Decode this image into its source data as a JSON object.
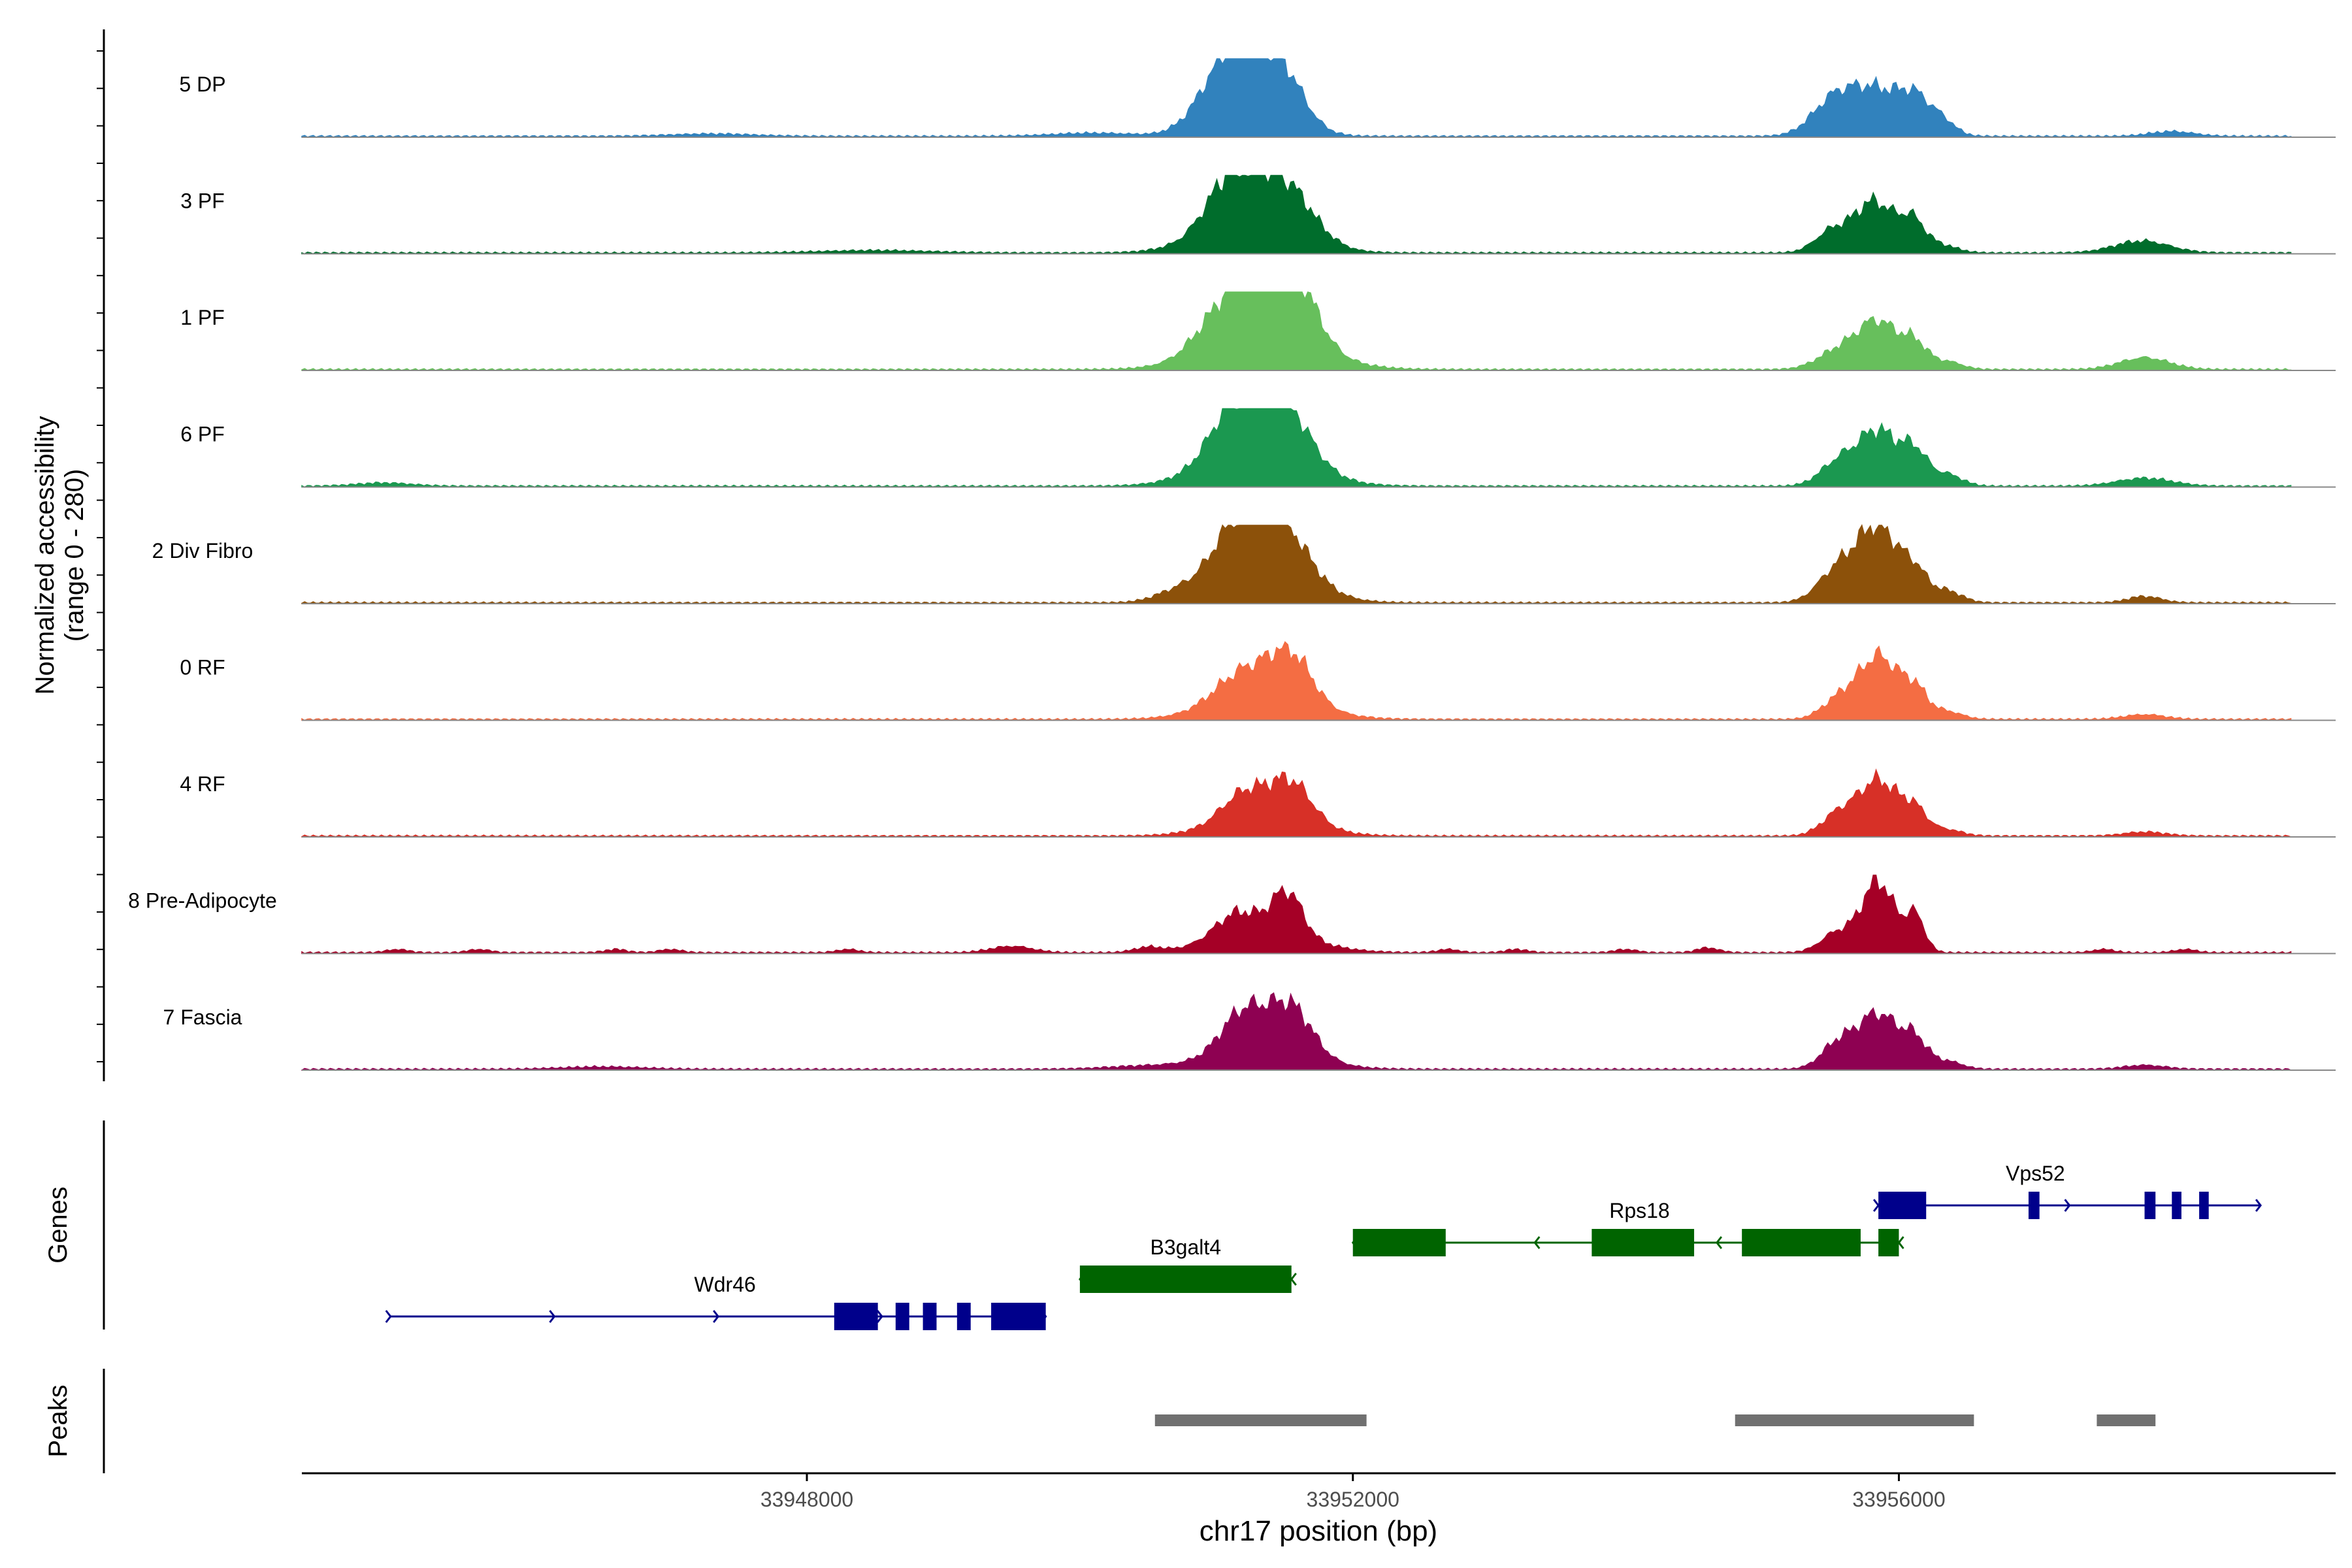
{
  "chart_data": {
    "type": "area",
    "title": "",
    "xlabel": "chr17 position (bp)",
    "ylabel_line1": "Normalized accessibility",
    "ylabel_line2": "(range 0 - 280)",
    "xlim": [
      33944300,
      33959200
    ],
    "ylim": [
      0,
      280
    ],
    "xticks": [
      33948000,
      33952000,
      33956000
    ],
    "xtick_labels": [
      "33948000",
      "33952000",
      "33956000"
    ],
    "tracks": [
      {
        "name": "5 DP",
        "color": "#3182BD",
        "peaks": [
          [
            33951100,
            70,
            200
          ],
          [
            33951480,
            55,
            160
          ],
          [
            33951250,
            48,
            260
          ],
          [
            33955500,
            30,
            150
          ],
          [
            33955820,
            60,
            230
          ],
          [
            33956130,
            32,
            110
          ],
          [
            33956330,
            15,
            90
          ],
          [
            33958000,
            6,
            160
          ],
          [
            33947300,
            3,
            300
          ],
          [
            33950100,
            4,
            300
          ]
        ]
      },
      {
        "name": "3 PF",
        "color": "#006D2C",
        "peaks": [
          [
            33951100,
            55,
            170
          ],
          [
            33951500,
            58,
            200
          ],
          [
            33951250,
            45,
            330
          ],
          [
            33955500,
            25,
            120
          ],
          [
            33955820,
            65,
            150
          ],
          [
            33956100,
            35,
            90
          ],
          [
            33956300,
            10,
            120
          ],
          [
            33957780,
            15,
            200
          ],
          [
            33948500,
            3,
            400
          ]
        ]
      },
      {
        "name": "1 PF",
        "color": "#67BF5C",
        "peaks": [
          [
            33951200,
            70,
            220
          ],
          [
            33951550,
            80,
            170
          ],
          [
            33951350,
            45,
            380
          ],
          [
            33955550,
            22,
            150
          ],
          [
            33955850,
            60,
            150
          ],
          [
            33956120,
            28,
            90
          ],
          [
            33956350,
            10,
            110
          ],
          [
            33957800,
            15,
            180
          ],
          [
            33950900,
            8,
            150
          ]
        ]
      },
      {
        "name": "6 PF",
        "color": "#1B9850",
        "peaks": [
          [
            33951150,
            65,
            180
          ],
          [
            33951500,
            62,
            180
          ],
          [
            33951300,
            48,
            350
          ],
          [
            33955550,
            28,
            130
          ],
          [
            33955850,
            70,
            150
          ],
          [
            33956120,
            38,
            90
          ],
          [
            33956350,
            15,
            110
          ],
          [
            33957800,
            10,
            200
          ],
          [
            33944900,
            4,
            200
          ]
        ]
      },
      {
        "name": "2 Div Fibro",
        "color": "#8C510A",
        "peaks": [
          [
            33951150,
            62,
            180
          ],
          [
            33951480,
            58,
            190
          ],
          [
            33951320,
            45,
            330
          ],
          [
            33955550,
            40,
            140
          ],
          [
            33955850,
            95,
            150
          ],
          [
            33956120,
            33,
            90
          ],
          [
            33956350,
            15,
            110
          ],
          [
            33957800,
            8,
            120
          ],
          [
            33950700,
            10,
            150
          ]
        ]
      },
      {
        "name": "0 RF",
        "color": "#F46D43",
        "peaks": [
          [
            33951200,
            35,
            200
          ],
          [
            33951550,
            55,
            150
          ],
          [
            33951350,
            30,
            350
          ],
          [
            33955550,
            22,
            120
          ],
          [
            33955850,
            80,
            150
          ],
          [
            33956120,
            32,
            90
          ],
          [
            33956350,
            10,
            110
          ],
          [
            33957800,
            6,
            150
          ]
        ]
      },
      {
        "name": "4 RF",
        "color": "#D73027",
        "peaks": [
          [
            33951200,
            33,
            160
          ],
          [
            33951550,
            48,
            150
          ],
          [
            33951350,
            25,
            330
          ],
          [
            33955550,
            25,
            120
          ],
          [
            33955850,
            70,
            150
          ],
          [
            33956120,
            28,
            90
          ],
          [
            33956350,
            8,
            110
          ],
          [
            33957800,
            5,
            150
          ]
        ]
      },
      {
        "name": "8 Pre-Adipocyte",
        "color": "#A50026",
        "peaks": [
          [
            33951150,
            30,
            160
          ],
          [
            33951520,
            55,
            110
          ],
          [
            33951350,
            25,
            350
          ],
          [
            33955550,
            25,
            120
          ],
          [
            33955850,
            90,
            120
          ],
          [
            33956120,
            45,
            70
          ],
          [
            33949500,
            8,
            150
          ],
          [
            33950500,
            6,
            100
          ],
          [
            33945000,
            4,
            80
          ],
          [
            33945600,
            4,
            80
          ],
          [
            33946600,
            4,
            80
          ],
          [
            33947000,
            4,
            80
          ],
          [
            33948300,
            4,
            80
          ],
          [
            33952700,
            4,
            80
          ],
          [
            33953200,
            4,
            80
          ],
          [
            33954000,
            4,
            80
          ],
          [
            33954600,
            6,
            80
          ],
          [
            33957500,
            4,
            80
          ],
          [
            33958100,
            4,
            80
          ]
        ]
      },
      {
        "name": "7 Fascia",
        "color": "#8E0152",
        "peaks": [
          [
            33951200,
            48,
            160
          ],
          [
            33951550,
            55,
            150
          ],
          [
            33951350,
            30,
            330
          ],
          [
            33955550,
            30,
            120
          ],
          [
            33955850,
            70,
            150
          ],
          [
            33956120,
            32,
            90
          ],
          [
            33956350,
            10,
            110
          ],
          [
            33957800,
            5,
            150
          ],
          [
            33950500,
            4,
            300
          ],
          [
            33946500,
            3,
            300
          ]
        ]
      }
    ],
    "genes": [
      {
        "name": "Wdr46",
        "strand": "+",
        "color": "#00008B",
        "row": 2,
        "start": 33944950,
        "end": 33949750,
        "exons": [
          [
            33948200,
            33948520
          ],
          [
            33948650,
            33948750
          ],
          [
            33948850,
            33948950
          ],
          [
            33949100,
            33949200
          ],
          [
            33949350,
            33949750
          ]
        ]
      },
      {
        "name": "B3galt4",
        "strand": "-",
        "color": "#006400",
        "row": 1,
        "start": 33950000,
        "end": 33951550,
        "exons": [
          [
            33950000,
            33951550
          ]
        ]
      },
      {
        "name": "Rps18",
        "strand": "-",
        "color": "#006400",
        "row": 0,
        "start": 33952000,
        "end": 33956000,
        "exons": [
          [
            33952000,
            33952680
          ],
          [
            33953750,
            33954500
          ],
          [
            33954850,
            33955720
          ],
          [
            33955850,
            33956000
          ]
        ]
      },
      {
        "name": "Vps52",
        "strand": "+",
        "color": "#00008B",
        "row": -1,
        "start": 33955850,
        "end": 33958650,
        "exons": [
          [
            33955850,
            33956200
          ],
          [
            33956950,
            33957030
          ],
          [
            33957800,
            33957880
          ],
          [
            33958000,
            33958070
          ],
          [
            33958200,
            33958270
          ]
        ]
      }
    ],
    "peaks_track": [
      [
        33950550,
        33952100
      ],
      [
        33954800,
        33956550
      ],
      [
        33957450,
        33957880
      ]
    ],
    "panel_labels": {
      "genes": "Genes",
      "peaks": "Peaks"
    }
  }
}
